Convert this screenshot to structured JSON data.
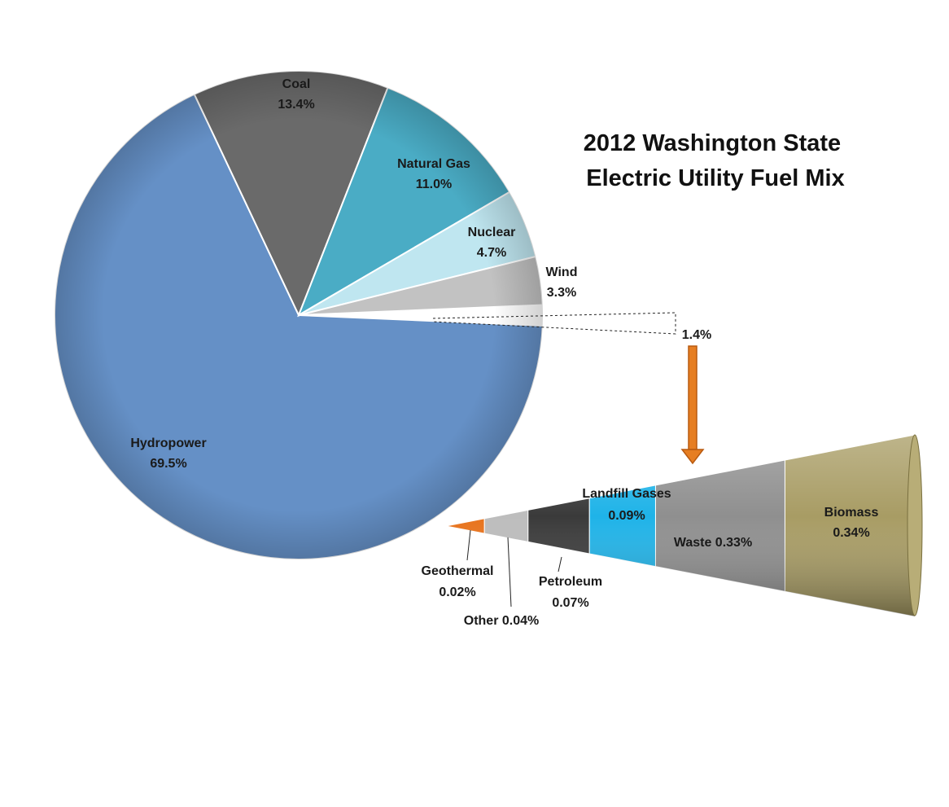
{
  "chart_data": [
    {
      "type": "pie",
      "title_lines": [
        "2012 Washington State",
        "Electric Utility Fuel Mix"
      ],
      "slices": [
        {
          "name": "Hydropower",
          "value": 69.5,
          "label": "69.5%",
          "color": "#6590c6"
        },
        {
          "name": "Coal",
          "value": 13.4,
          "label": "13.4%",
          "color": "#6a6a6a"
        },
        {
          "name": "Natural Gas",
          "value": 11.0,
          "label": "11.0%",
          "color": "#4aacc5"
        },
        {
          "name": "Nuclear",
          "value": 4.7,
          "label": "4.7%",
          "color": "#bfe6f0"
        },
        {
          "name": "Wind",
          "value": 3.3,
          "label": "3.3%",
          "color": "#c2c2c2"
        },
        {
          "name": "",
          "value": 1.4,
          "label": "1.4%",
          "color": "#ffffff"
        }
      ]
    },
    {
      "type": "bar",
      "orientation": "stacked-cone",
      "segments": [
        {
          "name": "Geothermal",
          "value": 0.02,
          "label": "0.02%",
          "color": "#e8731c"
        },
        {
          "name": "Other",
          "value": 0.04,
          "label": "0.04%",
          "color": "#bdbdbd"
        },
        {
          "name": "Petroleum",
          "value": 0.07,
          "label": "0.07%",
          "color": "#3a3a3a"
        },
        {
          "name": "Landfill Gases",
          "value": 0.09,
          "label": "0.09%",
          "color": "#1fb3e8"
        },
        {
          "name": "Waste",
          "value": 0.33,
          "label": "0.33%",
          "color": "#8f8f8f"
        },
        {
          "name": "Biomass",
          "value": 0.34,
          "label": "0.34%",
          "color": "#a89c64"
        }
      ]
    }
  ],
  "colors": {
    "arrow": "#e67e22",
    "arrow_stroke": "#b85a10"
  }
}
